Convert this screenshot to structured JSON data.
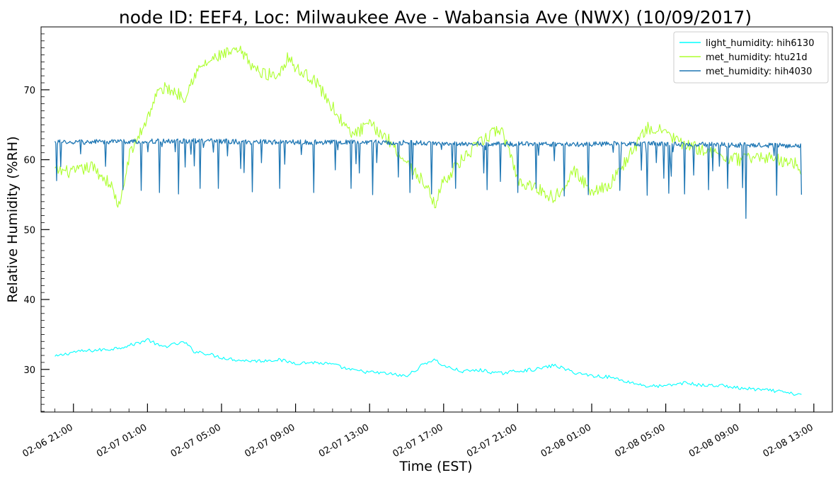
{
  "chart_data": {
    "type": "line",
    "title": "node ID: EEF4, Loc: Milwaukee Ave - Wabansia Ave (NWX) (10/09/2017)",
    "xlabel": "Time (EST)",
    "ylabel": "Relative Humidity (%RH)",
    "x_range": [
      "2018-02-06T19:15",
      "2018-02-08T14:00"
    ],
    "ylim": [
      23.9,
      79
    ],
    "x_ticks": [
      {
        "t": "2018-02-06T21:00",
        "label": "02-06 21:00"
      },
      {
        "t": "2018-02-07T01:00",
        "label": "02-07 01:00"
      },
      {
        "t": "2018-02-07T05:00",
        "label": "02-07 05:00"
      },
      {
        "t": "2018-02-07T09:00",
        "label": "02-07 09:00"
      },
      {
        "t": "2018-02-07T13:00",
        "label": "02-07 13:00"
      },
      {
        "t": "2018-02-07T17:00",
        "label": "02-07 17:00"
      },
      {
        "t": "2018-02-07T21:00",
        "label": "02-07 21:00"
      },
      {
        "t": "2018-02-08T01:00",
        "label": "02-08 01:00"
      },
      {
        "t": "2018-02-08T05:00",
        "label": "02-08 05:00"
      },
      {
        "t": "2018-02-08T09:00",
        "label": "02-08 09:00"
      },
      {
        "t": "2018-02-08T13:00",
        "label": "02-08 13:00"
      }
    ],
    "y_ticks": [
      30,
      40,
      50,
      60,
      70
    ],
    "grid": false,
    "legend_position": "top-right",
    "series": [
      {
        "name": "light_humidity: hih6130",
        "color": "#00ffff",
        "points": [
          [
            "2018-02-06T20:00",
            31.8
          ],
          [
            "2018-02-06T21:00",
            32.5
          ],
          [
            "2018-02-06T22:00",
            32.7
          ],
          [
            "2018-02-06T23:00",
            32.9
          ],
          [
            "2018-02-07T00:00",
            33.4
          ],
          [
            "2018-02-07T00:45",
            34.0
          ],
          [
            "2018-02-07T01:00",
            34.3
          ],
          [
            "2018-02-07T01:45",
            33.2
          ],
          [
            "2018-02-07T02:30",
            33.6
          ],
          [
            "2018-02-07T03:00",
            33.9
          ],
          [
            "2018-02-07T03:30",
            32.6
          ],
          [
            "2018-02-07T04:00",
            32.4
          ],
          [
            "2018-02-07T05:00",
            31.7
          ],
          [
            "2018-02-07T06:00",
            31.3
          ],
          [
            "2018-02-07T07:00",
            31.2
          ],
          [
            "2018-02-07T08:00",
            31.4
          ],
          [
            "2018-02-07T09:00",
            30.9
          ],
          [
            "2018-02-07T10:00",
            31.0
          ],
          [
            "2018-02-07T11:00",
            30.7
          ],
          [
            "2018-02-07T12:00",
            29.9
          ],
          [
            "2018-02-07T13:00",
            29.6
          ],
          [
            "2018-02-07T14:00",
            29.4
          ],
          [
            "2018-02-07T15:00",
            29.0
          ],
          [
            "2018-02-07T16:00",
            30.9
          ],
          [
            "2018-02-07T16:30",
            31.4
          ],
          [
            "2018-02-07T17:00",
            30.5
          ],
          [
            "2018-02-07T18:00",
            29.7
          ],
          [
            "2018-02-07T19:00",
            29.9
          ],
          [
            "2018-02-07T20:00",
            29.4
          ],
          [
            "2018-02-07T21:00",
            29.8
          ],
          [
            "2018-02-07T22:00",
            30.0
          ],
          [
            "2018-02-07T23:00",
            30.6
          ],
          [
            "2018-02-08T00:00",
            29.6
          ],
          [
            "2018-02-08T01:00",
            29.1
          ],
          [
            "2018-02-08T02:00",
            28.9
          ],
          [
            "2018-02-08T03:00",
            28.2
          ],
          [
            "2018-02-08T04:00",
            27.6
          ],
          [
            "2018-02-08T05:00",
            27.6
          ],
          [
            "2018-02-08T06:00",
            28.1
          ],
          [
            "2018-02-08T07:00",
            27.7
          ],
          [
            "2018-02-08T08:00",
            27.7
          ],
          [
            "2018-02-08T09:00",
            27.3
          ],
          [
            "2018-02-08T10:00",
            27.1
          ],
          [
            "2018-02-08T11:00",
            26.9
          ],
          [
            "2018-02-08T12:00",
            26.4
          ],
          [
            "2018-02-08T12:20",
            26.6
          ]
        ]
      },
      {
        "name": "met_humidity: htu21d",
        "color": "#adff2f",
        "points": [
          [
            "2018-02-06T20:00",
            58.5
          ],
          [
            "2018-02-06T21:00",
            58.2
          ],
          [
            "2018-02-06T22:00",
            59.0
          ],
          [
            "2018-02-06T23:00",
            56.5
          ],
          [
            "2018-02-06T23:30",
            53.0
          ],
          [
            "2018-02-07T00:00",
            60.5
          ],
          [
            "2018-02-07T01:00",
            66.0
          ],
          [
            "2018-02-07T01:30",
            69.5
          ],
          [
            "2018-02-07T02:00",
            70.3
          ],
          [
            "2018-02-07T03:00",
            69.0
          ],
          [
            "2018-02-07T03:30",
            72.0
          ],
          [
            "2018-02-07T04:00",
            73.5
          ],
          [
            "2018-02-07T05:00",
            75.0
          ],
          [
            "2018-02-07T06:00",
            75.5
          ],
          [
            "2018-02-07T07:00",
            72.5
          ],
          [
            "2018-02-07T08:00",
            72.0
          ],
          [
            "2018-02-07T08:40",
            75.0
          ],
          [
            "2018-02-07T09:00",
            73.0
          ],
          [
            "2018-02-07T10:00",
            71.5
          ],
          [
            "2018-02-07T11:00",
            67.5
          ],
          [
            "2018-02-07T12:00",
            63.5
          ],
          [
            "2018-02-07T13:00",
            65.0
          ],
          [
            "2018-02-07T14:00",
            63.0
          ],
          [
            "2018-02-07T15:00",
            59.5
          ],
          [
            "2018-02-07T16:00",
            56.5
          ],
          [
            "2018-02-07T16:30",
            53.5
          ],
          [
            "2018-02-07T17:00",
            57.0
          ],
          [
            "2018-02-07T18:00",
            60.0
          ],
          [
            "2018-02-07T19:00",
            62.5
          ],
          [
            "2018-02-07T20:00",
            64.5
          ],
          [
            "2018-02-07T20:30",
            62.0
          ],
          [
            "2018-02-07T21:00",
            57.0
          ],
          [
            "2018-02-07T22:00",
            56.0
          ],
          [
            "2018-02-07T23:00",
            54.5
          ],
          [
            "2018-02-08T00:00",
            58.5
          ],
          [
            "2018-02-08T01:00",
            55.5
          ],
          [
            "2018-02-08T02:00",
            56.5
          ],
          [
            "2018-02-08T03:00",
            60.5
          ],
          [
            "2018-02-08T04:00",
            64.5
          ],
          [
            "2018-02-08T05:00",
            64.0
          ],
          [
            "2018-02-08T06:00",
            62.0
          ],
          [
            "2018-02-08T07:00",
            61.5
          ],
          [
            "2018-02-08T08:00",
            60.5
          ],
          [
            "2018-02-08T09:00",
            60.0
          ],
          [
            "2018-02-08T10:00",
            60.5
          ],
          [
            "2018-02-08T11:00",
            60.0
          ],
          [
            "2018-02-08T12:00",
            59.5
          ],
          [
            "2018-02-08T12:20",
            58.5
          ]
        ]
      },
      {
        "name": "met_humidity: hih4030",
        "color": "#1f77b4",
        "points": [
          [
            "2018-02-06T20:00",
            62.5
          ],
          [
            "2018-02-07T00:00",
            62.6
          ],
          [
            "2018-02-07T03:00",
            62.7
          ],
          [
            "2018-02-07T08:00",
            62.5
          ],
          [
            "2018-02-07T13:00",
            62.5
          ],
          [
            "2018-02-07T18:00",
            62.3
          ],
          [
            "2018-02-07T23:00",
            62.2
          ],
          [
            "2018-02-08T04:00",
            62.3
          ],
          [
            "2018-02-08T09:00",
            62.1
          ],
          [
            "2018-02-08T12:20",
            62.0
          ]
        ],
        "dips": [
          [
            "2018-02-06T20:05",
            57.0
          ],
          [
            "2018-02-06T23:40",
            55.7
          ],
          [
            "2018-02-07T00:40",
            55.6
          ],
          [
            "2018-02-07T01:40",
            55.3
          ],
          [
            "2018-02-07T02:40",
            55.1
          ],
          [
            "2018-02-07T03:50",
            55.9
          ],
          [
            "2018-02-07T04:50",
            55.9
          ],
          [
            "2018-02-07T06:40",
            55.4
          ],
          [
            "2018-02-07T08:10",
            55.9
          ],
          [
            "2018-02-07T10:00",
            55.3
          ],
          [
            "2018-02-07T12:00",
            55.9
          ],
          [
            "2018-02-07T13:10",
            55.0
          ],
          [
            "2018-02-07T15:10",
            55.3
          ],
          [
            "2018-02-07T16:20",
            55.1
          ],
          [
            "2018-02-07T17:40",
            55.9
          ],
          [
            "2018-02-07T19:20",
            55.7
          ],
          [
            "2018-02-07T21:00",
            55.3
          ],
          [
            "2018-02-07T22:00",
            55.9
          ],
          [
            "2018-02-07T23:30",
            54.8
          ],
          [
            "2018-02-08T00:50",
            55.0
          ],
          [
            "2018-02-08T02:30",
            55.6
          ],
          [
            "2018-02-08T04:00",
            54.9
          ],
          [
            "2018-02-08T05:10",
            55.2
          ],
          [
            "2018-02-08T06:00",
            55.1
          ],
          [
            "2018-02-08T07:20",
            55.7
          ],
          [
            "2018-02-08T08:20",
            55.9
          ],
          [
            "2018-02-08T09:10",
            56.0
          ],
          [
            "2018-02-08T09:20",
            51.6
          ],
          [
            "2018-02-08T11:00",
            54.9
          ],
          [
            "2018-02-08T12:20",
            55.0
          ]
        ]
      }
    ]
  }
}
